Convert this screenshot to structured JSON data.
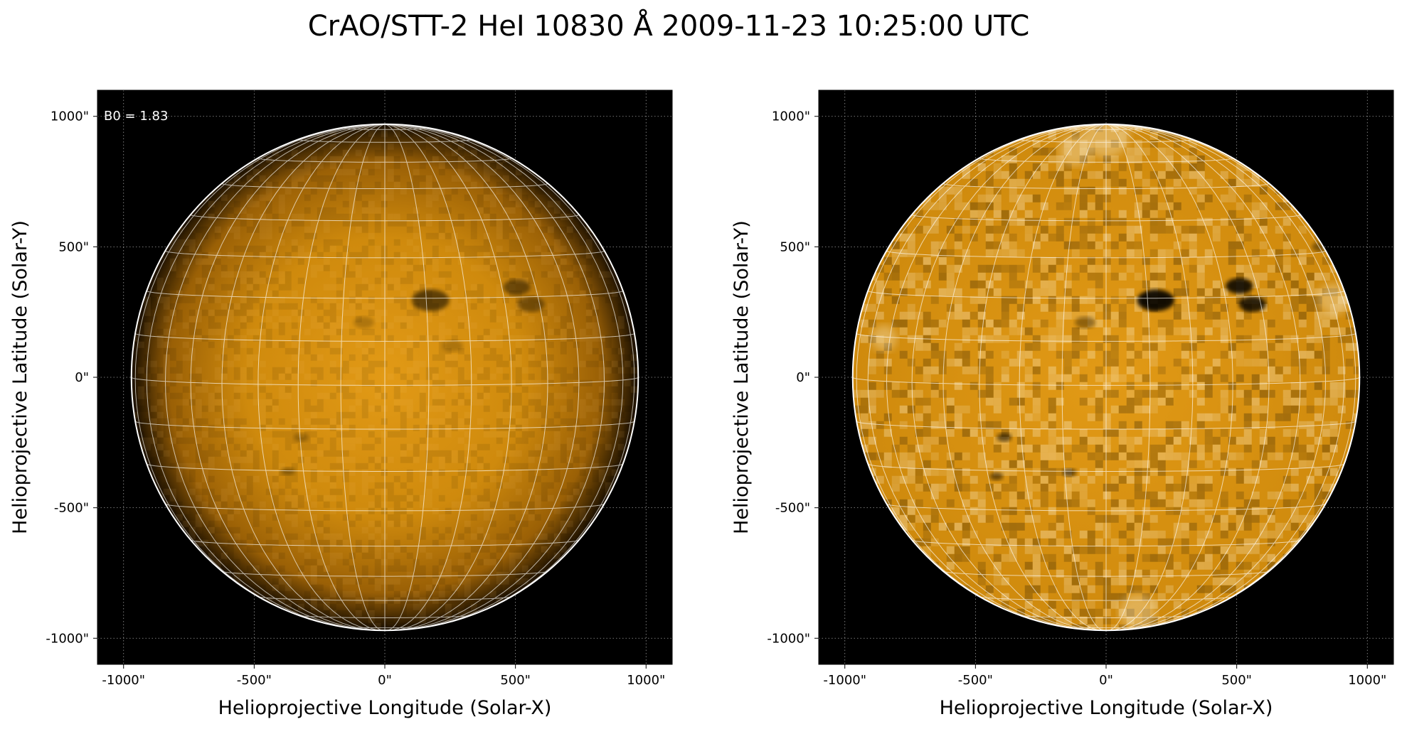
{
  "figure": {
    "title": "CrAO/STT-2 HeI 10830 Å 2009-11-23 10:25:00 UTC"
  },
  "colors": {
    "disk_center": "#e29a16",
    "disk_mid": "#cf8a0d",
    "disk_limb": "#1a0f00",
    "background": "#000000",
    "grid": "#ffffff",
    "limb_circle": "#ffffff"
  },
  "chart_data": [
    {
      "type": "heatmap",
      "panel": "left",
      "xlabel": "Helioprojective Longitude (Solar-X)",
      "ylabel": "Helioprojective Latitude (Solar-Y)",
      "xlim": [
        -1100,
        1100
      ],
      "ylim": [
        -1100,
        1100
      ],
      "xticks": [
        -1000,
        -500,
        0,
        500,
        1000
      ],
      "yticks": [
        -1000,
        -500,
        0,
        500,
        1000
      ],
      "xtick_labels": [
        "-1000\"",
        "-500\"",
        "0\"",
        "500\"",
        "1000\""
      ],
      "ytick_labels": [
        "-1000\"",
        "-500\"",
        "0\"",
        "500\"",
        "1000\""
      ],
      "grid": true,
      "solar_radius_arcsec": 970,
      "b0_deg": 1.83,
      "annotation": "B0 = 1.83",
      "limb_darkening": true,
      "features": [
        {
          "x": 175,
          "y": 295,
          "size": 55,
          "strength": 0.55
        },
        {
          "x": 505,
          "y": 345,
          "size": 40,
          "strength": 0.45
        },
        {
          "x": 560,
          "y": 280,
          "size": 40,
          "strength": 0.4
        },
        {
          "x": -370,
          "y": -360,
          "size": 20,
          "strength": 0.3
        },
        {
          "x": -320,
          "y": -230,
          "size": 22,
          "strength": 0.25
        },
        {
          "x": -80,
          "y": 210,
          "size": 30,
          "strength": 0.2
        },
        {
          "x": 260,
          "y": 120,
          "size": 30,
          "strength": 0.2
        }
      ]
    },
    {
      "type": "heatmap",
      "panel": "right",
      "xlabel": "Helioprojective Longitude (Solar-X)",
      "ylabel": "Helioprojective Latitude (Solar-Y)",
      "xlim": [
        -1100,
        1100
      ],
      "ylim": [
        -1100,
        1100
      ],
      "xticks": [
        -1000,
        -500,
        0,
        500,
        1000
      ],
      "yticks": [
        -1000,
        -500,
        0,
        500,
        1000
      ],
      "xtick_labels": [
        "-1000\"",
        "-500\"",
        "0\"",
        "500\"",
        "1000\""
      ],
      "ytick_labels": [
        "-1000\"",
        "-500\"",
        "0\"",
        "500\"",
        "1000\""
      ],
      "grid": true,
      "solar_radius_arcsec": 970,
      "limb_darkening": false,
      "features": [
        {
          "x": 190,
          "y": 295,
          "size": 55,
          "strength": 0.9
        },
        {
          "x": 510,
          "y": 350,
          "size": 40,
          "strength": 0.85
        },
        {
          "x": 560,
          "y": 280,
          "size": 40,
          "strength": 0.8
        },
        {
          "x": -390,
          "y": -230,
          "size": 22,
          "strength": 0.55
        },
        {
          "x": -420,
          "y": -380,
          "size": 20,
          "strength": 0.5
        },
        {
          "x": -140,
          "y": -365,
          "size": 20,
          "strength": 0.55
        },
        {
          "x": -80,
          "y": 210,
          "size": 30,
          "strength": 0.35
        },
        {
          "x": 820,
          "y": 500,
          "size": 25,
          "strength": 0.4
        }
      ]
    }
  ]
}
